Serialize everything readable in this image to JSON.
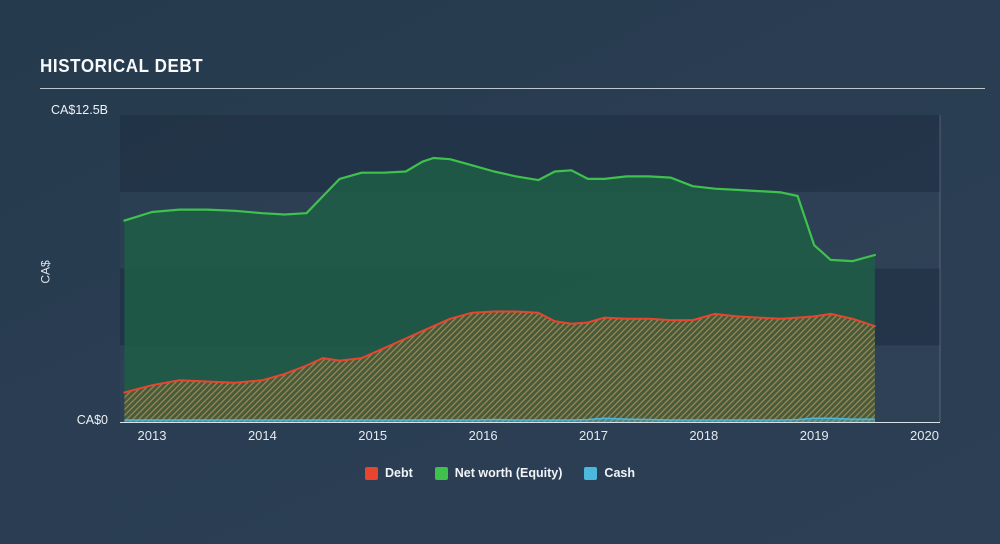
{
  "title": "HISTORICAL DEBT",
  "y_axis": {
    "top_label": "CA$12.5B",
    "bottom_label": "CA$0",
    "axis_label": "CA$"
  },
  "chart_data": {
    "type": "area",
    "title": "Historical Debt",
    "ylabel": "CA$",
    "ylim": [
      0,
      12.5
    ],
    "y_tick_labels": [
      "CA$0",
      "CA$12.5B"
    ],
    "x_range": [
      2012.71,
      2020.14
    ],
    "x_ticks": [
      "2013",
      "2014",
      "2015",
      "2016",
      "2017",
      "2018",
      "2019",
      "2020"
    ],
    "x_tick_values": [
      2013,
      2014,
      2015,
      2016,
      2017,
      2018,
      2019,
      2020
    ],
    "grid": "horizontal-bands",
    "legend_position": "bottom",
    "x": [
      2012.75,
      2013.0,
      2013.25,
      2013.5,
      2013.75,
      2014.0,
      2014.2,
      2014.4,
      2014.55,
      2014.7,
      2014.9,
      2015.1,
      2015.3,
      2015.45,
      2015.55,
      2015.7,
      2015.9,
      2016.1,
      2016.3,
      2016.5,
      2016.65,
      2016.8,
      2016.95,
      2017.1,
      2017.3,
      2017.5,
      2017.7,
      2017.9,
      2018.1,
      2018.3,
      2018.5,
      2018.7,
      2018.85,
      2019.0,
      2019.15,
      2019.35,
      2019.55
    ],
    "series": [
      {
        "name": "Debt",
        "color": "#e8452f",
        "style": "hatched-area",
        "values": [
          1.2,
          1.5,
          1.7,
          1.65,
          1.6,
          1.7,
          1.95,
          2.3,
          2.6,
          2.5,
          2.6,
          3.0,
          3.4,
          3.7,
          3.9,
          4.2,
          4.45,
          4.5,
          4.5,
          4.45,
          4.1,
          4.0,
          4.05,
          4.25,
          4.2,
          4.2,
          4.15,
          4.15,
          4.4,
          4.3,
          4.25,
          4.2,
          4.25,
          4.3,
          4.4,
          4.2,
          3.9
        ]
      },
      {
        "name": "Net worth (Equity)",
        "color": "#3fc24d",
        "style": "filled-area",
        "values": [
          8.2,
          8.55,
          8.65,
          8.65,
          8.6,
          8.5,
          8.45,
          8.5,
          9.2,
          9.9,
          10.15,
          10.15,
          10.2,
          10.6,
          10.75,
          10.7,
          10.45,
          10.2,
          10.0,
          9.85,
          10.2,
          10.25,
          9.9,
          9.9,
          10.0,
          10.0,
          9.95,
          9.6,
          9.5,
          9.45,
          9.4,
          9.35,
          9.2,
          7.2,
          6.6,
          6.55,
          6.8
        ]
      },
      {
        "name": "Cash",
        "color": "#4cb8dc",
        "style": "filled-area",
        "values": [
          0.08,
          0.08,
          0.08,
          0.08,
          0.08,
          0.08,
          0.08,
          0.08,
          0.08,
          0.08,
          0.08,
          0.08,
          0.08,
          0.08,
          0.08,
          0.08,
          0.08,
          0.1,
          0.08,
          0.08,
          0.08,
          0.08,
          0.1,
          0.15,
          0.12,
          0.1,
          0.08,
          0.08,
          0.08,
          0.08,
          0.08,
          0.08,
          0.1,
          0.15,
          0.15,
          0.12,
          0.12
        ]
      }
    ],
    "legend": [
      {
        "label": "Debt",
        "color": "#e8452f"
      },
      {
        "label": "Net worth (Equity)",
        "color": "#3fc24d"
      },
      {
        "label": "Cash",
        "color": "#4cb8dc"
      }
    ]
  }
}
